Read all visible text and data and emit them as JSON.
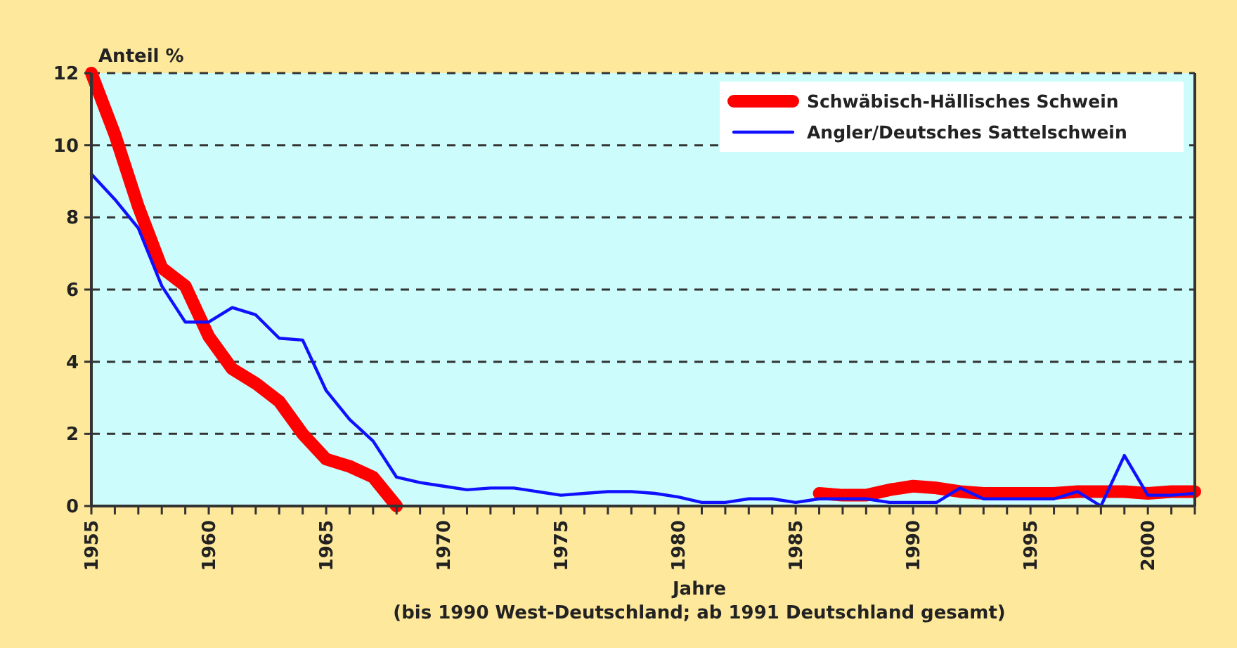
{
  "chart_data": {
    "type": "line",
    "ylabel": "Anteil %",
    "xlabel": "Jahre",
    "annotations": [
      "(bis 1990 West-Deutschland; ab 1991 Deutschland gesamt)"
    ],
    "xlim": [
      1955,
      2002
    ],
    "xticks": [
      1955,
      {
        "value": 1956,
        "label": null
      },
      {
        "value": 1957,
        "label": null
      },
      {
        "value": 1958,
        "label": null
      },
      {
        "value": 1959,
        "label": null
      },
      1960,
      {
        "value": 1961,
        "label": null
      },
      {
        "value": 1962,
        "label": null
      },
      {
        "value": 1963,
        "label": null
      },
      {
        "value": 1964,
        "label": null
      },
      1965,
      {
        "value": 1966,
        "label": null
      },
      {
        "value": 1967,
        "label": null
      },
      {
        "value": 1968,
        "label": null
      },
      {
        "value": 1969,
        "label": null
      },
      1970,
      {
        "value": 1971,
        "label": null
      },
      {
        "value": 1972,
        "label": null
      },
      {
        "value": 1973,
        "label": null
      },
      {
        "value": 1974,
        "label": null
      },
      1975,
      {
        "value": 1976,
        "label": null
      },
      {
        "value": 1977,
        "label": null
      },
      {
        "value": 1978,
        "label": null
      },
      {
        "value": 1979,
        "label": null
      },
      1980,
      {
        "value": 1981,
        "label": null
      },
      {
        "value": 1982,
        "label": null
      },
      {
        "value": 1983,
        "label": null
      },
      {
        "value": 1984,
        "label": null
      },
      1985,
      {
        "value": 1986,
        "label": null
      },
      {
        "value": 1987,
        "label": null
      },
      {
        "value": 1988,
        "label": null
      },
      {
        "value": 1989,
        "label": null
      },
      1990,
      {
        "value": 1991,
        "label": null
      },
      {
        "value": 1992,
        "label": null
      },
      {
        "value": 1993,
        "label": null
      },
      {
        "value": 1994,
        "label": null
      },
      1995,
      {
        "value": 1996,
        "label": null
      },
      {
        "value": 1997,
        "label": null
      },
      {
        "value": 1998,
        "label": null
      },
      {
        "value": 1999,
        "label": null
      },
      2000,
      {
        "value": 2001,
        "label": null
      },
      {
        "value": 2002,
        "label": null
      }
    ],
    "ylim": [
      0,
      12
    ],
    "yticks": [
      0,
      2,
      4,
      6,
      8,
      10,
      12
    ],
    "grid": "y",
    "legend": "top right",
    "line_style": "solid",
    "marker": "none",
    "series": [
      {
        "name": "Schwäbisch-Hällisches Schwein",
        "color": "#ff0000",
        "x": [
          1955,
          1956,
          1957,
          1958,
          1959,
          1960,
          1961,
          1962,
          1963,
          1964,
          1965,
          1966,
          1967,
          1968,
          1969,
          1986,
          1987,
          1988,
          1989,
          1990,
          1991,
          1992,
          1993,
          1994,
          1995,
          1996,
          1997,
          1998,
          1999,
          2000,
          2001,
          2002
        ],
        "values": [
          12,
          10.3,
          8.3,
          6.6,
          6.1,
          4.7,
          3.8,
          3.4,
          2.9,
          2.0,
          1.3,
          1.1,
          0.8,
          0,
          null,
          0.35,
          0.3,
          0.3,
          0.45,
          0.55,
          0.5,
          0.4,
          0.35,
          0.35,
          0.35,
          0.35,
          0.4,
          0.4,
          0.4,
          0.35,
          0.4,
          0.4
        ]
      },
      {
        "name": "Angler/Deutsches Sattelschwein",
        "color": "#1010ff",
        "x": [
          1955,
          1956,
          1957,
          1958,
          1959,
          1960,
          1961,
          1962,
          1963,
          1964,
          1965,
          1966,
          1967,
          1968,
          1969,
          1970,
          1971,
          1972,
          1973,
          1974,
          1975,
          1976,
          1977,
          1978,
          1979,
          1980,
          1981,
          1982,
          1983,
          1984,
          1985,
          1986,
          1987,
          1988,
          1989,
          1990,
          1991,
          1992,
          1993,
          1994,
          1995,
          1996,
          1997,
          1998,
          1999,
          2000,
          2001,
          2002
        ],
        "values": [
          9.2,
          8.5,
          7.7,
          6.1,
          5.1,
          5.1,
          5.5,
          5.3,
          4.65,
          4.6,
          3.2,
          2.4,
          1.8,
          0.8,
          0.65,
          0.55,
          0.45,
          0.5,
          0.5,
          0.4,
          0.3,
          0.35,
          0.4,
          0.4,
          0.35,
          0.25,
          0.1,
          0.1,
          0.2,
          0.2,
          0.1,
          0.2,
          0.2,
          0.2,
          0.1,
          0.1,
          0.1,
          0.5,
          0.2,
          0.2,
          0.2,
          0.2,
          0.4,
          0.0,
          1.4,
          0.3,
          0.3,
          0.35
        ]
      }
    ]
  }
}
